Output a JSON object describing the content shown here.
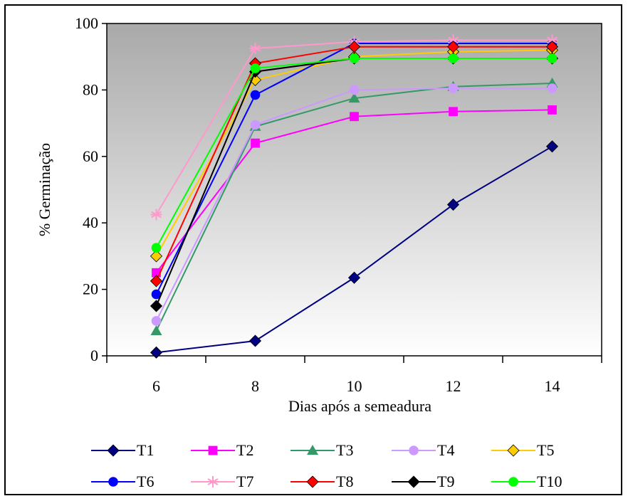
{
  "chart_data": {
    "type": "line",
    "title": "",
    "xlabel": "Dias após a semeadura",
    "ylabel": "% Germinação",
    "x": [
      6,
      8,
      10,
      12,
      14
    ],
    "xlim": [
      5,
      15
    ],
    "ylim": [
      0,
      100
    ],
    "yticks": [
      0,
      20,
      40,
      60,
      80,
      100
    ],
    "xticks": [
      6,
      8,
      10,
      12,
      14
    ],
    "grid": false,
    "plot_background": "gradient gray to white",
    "legend_position": "bottom",
    "series": [
      {
        "name": "T1",
        "values": [
          1,
          4.5,
          23.5,
          45.5,
          63
        ],
        "color": "#000080",
        "marker": "diamond"
      },
      {
        "name": "T2",
        "values": [
          25,
          64,
          72,
          73.5,
          74
        ],
        "color": "#FF00FF",
        "marker": "square"
      },
      {
        "name": "T3",
        "values": [
          7.5,
          69,
          77.5,
          81,
          82
        ],
        "color": "#339966",
        "marker": "triangle"
      },
      {
        "name": "T4",
        "values": [
          10.5,
          69.5,
          80,
          80.5,
          80.5
        ],
        "color": "#CC99FF",
        "marker": "circle"
      },
      {
        "name": "T5",
        "values": [
          30,
          83,
          90,
          91.5,
          92
        ],
        "color": "#FFCC00",
        "marker": "diamond"
      },
      {
        "name": "T6",
        "values": [
          18.5,
          78.5,
          94,
          94,
          94
        ],
        "color": "#0000FF",
        "marker": "circle"
      },
      {
        "name": "T7",
        "values": [
          42.5,
          92.5,
          94.5,
          95,
          95
        ],
        "color": "#FF99CC",
        "marker": "asterisk"
      },
      {
        "name": "T8",
        "values": [
          22.5,
          88,
          93,
          93,
          93
        ],
        "color": "#FF0000",
        "marker": "diamond"
      },
      {
        "name": "T9",
        "values": [
          15,
          85.5,
          89.5,
          89.5,
          89.5
        ],
        "color": "#000000",
        "marker": "diamond"
      },
      {
        "name": "T10",
        "values": [
          32.5,
          86.5,
          89.5,
          89.5,
          89.5
        ],
        "color": "#00FF00",
        "marker": "circle"
      }
    ]
  }
}
